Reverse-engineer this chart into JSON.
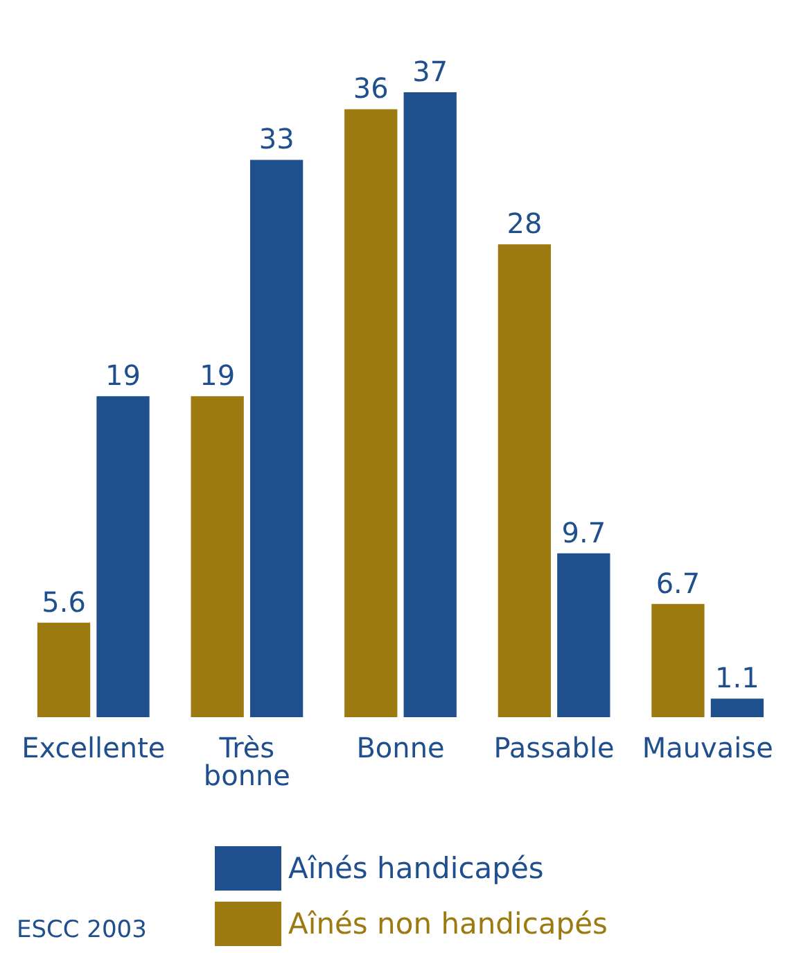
{
  "chart_data": {
    "type": "bar",
    "categories": [
      "Excellente",
      "Très bonne",
      "Bonne",
      "Passable",
      "Mauvaise"
    ],
    "series": [
      {
        "name": "Aînés non handicapés",
        "color": "#9c7a10",
        "values": [
          5.6,
          19,
          36,
          28,
          6.7
        ]
      },
      {
        "name": "Aînés handicapés",
        "color": "#1f4f8c",
        "values": [
          19,
          33,
          37,
          9.7,
          1.1
        ]
      }
    ],
    "tick_labels": false,
    "data_labels": true,
    "legend": "bottom",
    "annotations": [
      "ESCC 2003"
    ]
  }
}
